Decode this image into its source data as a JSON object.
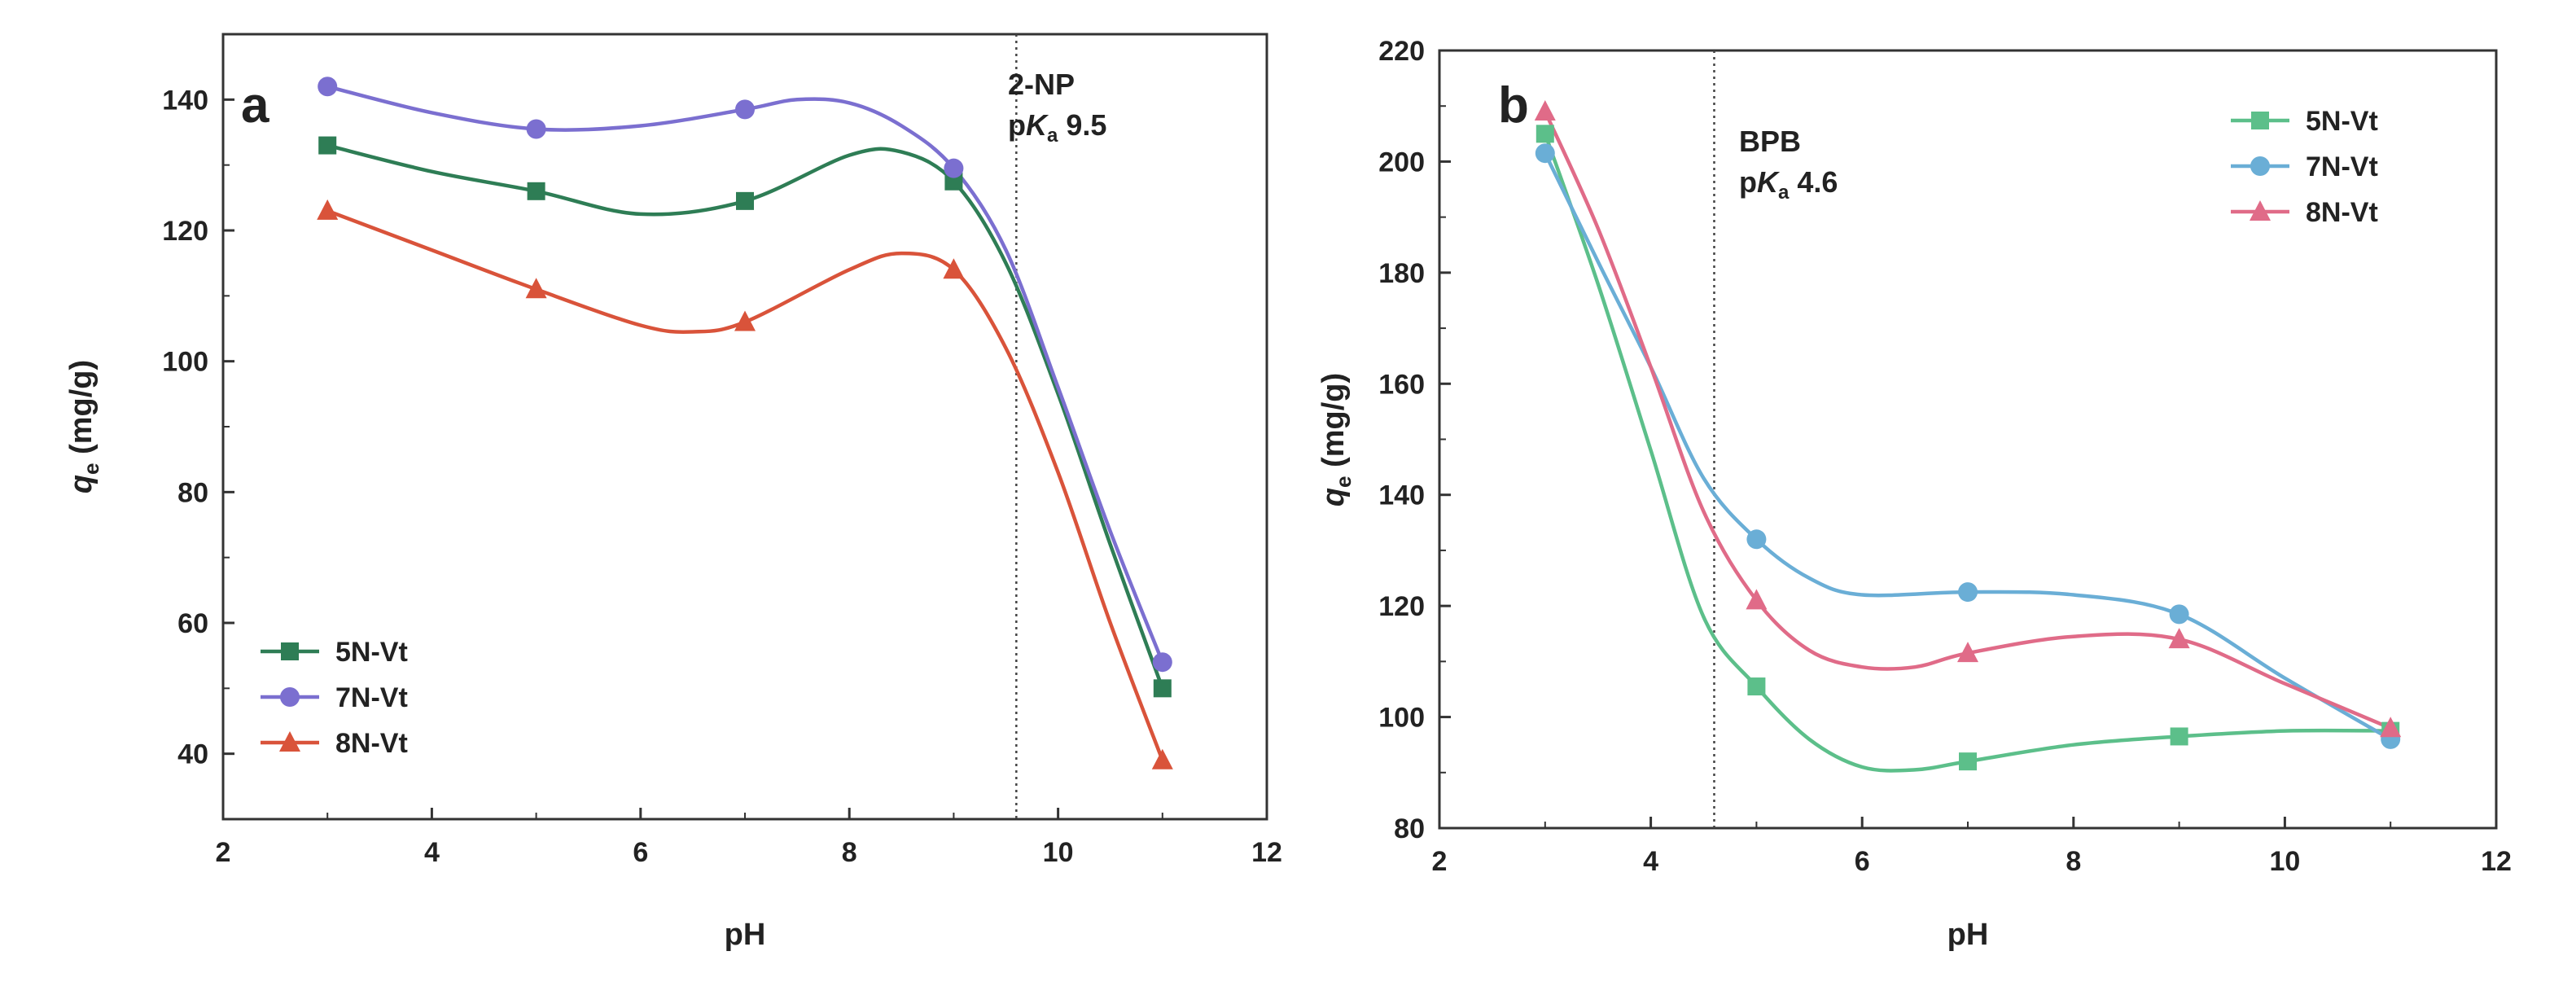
{
  "chart_data": [
    {
      "type": "line",
      "panel_label": "a",
      "xlabel": "pH",
      "ylabel_main": "q",
      "ylabel_sub": "e",
      "ylabel_unit": " (mg/g)",
      "xlim": [
        2,
        12
      ],
      "ylim": [
        30,
        150
      ],
      "xticks": [
        2,
        4,
        6,
        8,
        10,
        12
      ],
      "yticks": [
        40,
        60,
        80,
        100,
        120,
        140
      ],
      "legend_position": "bottom-left",
      "annotation": {
        "line1": "2-NP",
        "pka_prefix": "p",
        "pka_k": "K",
        "pka_sub": "a",
        "pka_value": " 9.5",
        "x": 9.6
      },
      "series": [
        {
          "name": "5N-Vt",
          "color": "#2e7d55",
          "marker": "square",
          "x": [
            3,
            5,
            7,
            9,
            11
          ],
          "y": [
            133,
            126,
            124.5,
            127.5,
            50
          ],
          "curve": [
            [
              3,
              133
            ],
            [
              4,
              129
            ],
            [
              5,
              126
            ],
            [
              6,
              122.5
            ],
            [
              7,
              124.5
            ],
            [
              8,
              131.5
            ],
            [
              8.5,
              132
            ],
            [
              9,
              127.5
            ],
            [
              9.5,
              115
            ],
            [
              10,
              95
            ],
            [
              10.5,
              72
            ],
            [
              11,
              50
            ]
          ]
        },
        {
          "name": "7N-Vt",
          "color": "#7b6fd0",
          "marker": "circle",
          "x": [
            3,
            5,
            7,
            9,
            11
          ],
          "y": [
            142,
            135.5,
            138.5,
            129.5,
            54
          ],
          "curve": [
            [
              3,
              142
            ],
            [
              4,
              138
            ],
            [
              5,
              135.5
            ],
            [
              6,
              136
            ],
            [
              7,
              138.5
            ],
            [
              7.5,
              140
            ],
            [
              8,
              139.5
            ],
            [
              8.5,
              136
            ],
            [
              9,
              129.5
            ],
            [
              9.5,
              117
            ],
            [
              10,
              96
            ],
            [
              10.5,
              74
            ],
            [
              11,
              54
            ]
          ]
        },
        {
          "name": "8N-Vt",
          "color": "#d9533a",
          "marker": "triangle",
          "x": [
            3,
            5,
            7,
            9,
            11
          ],
          "y": [
            123,
            111,
            106,
            114,
            39
          ],
          "curve": [
            [
              3,
              123
            ],
            [
              4,
              117
            ],
            [
              5,
              111
            ],
            [
              6,
              105.5
            ],
            [
              6.5,
              104.5
            ],
            [
              7,
              106
            ],
            [
              8,
              114
            ],
            [
              8.5,
              116.5
            ],
            [
              9,
              114
            ],
            [
              9.5,
              102
            ],
            [
              10,
              83
            ],
            [
              10.5,
              60
            ],
            [
              11,
              39
            ]
          ]
        }
      ]
    },
    {
      "type": "line",
      "panel_label": "b",
      "xlabel": "pH",
      "ylabel_main": "q",
      "ylabel_sub": "e",
      "ylabel_unit": " (mg/g)",
      "xlim": [
        2,
        12
      ],
      "ylim": [
        80,
        220
      ],
      "xticks": [
        2,
        4,
        6,
        8,
        10,
        12
      ],
      "yticks": [
        80,
        100,
        120,
        140,
        160,
        180,
        200,
        220
      ],
      "legend_position": "top-right",
      "annotation": {
        "line1": "BPB",
        "pka_prefix": "p",
        "pka_k": "K",
        "pka_sub": "a",
        "pka_value": " 4.6",
        "x": 4.6
      },
      "series": [
        {
          "name": "5N-Vt",
          "color": "#5cbf8a",
          "marker": "square",
          "x": [
            3,
            5,
            7,
            9,
            11
          ],
          "y": [
            205,
            105.5,
            92,
            96.5,
            97.5
          ],
          "curve": [
            [
              3,
              205
            ],
            [
              3.5,
              178
            ],
            [
              4,
              148
            ],
            [
              4.5,
              118
            ],
            [
              5,
              105.5
            ],
            [
              5.5,
              96
            ],
            [
              6,
              91
            ],
            [
              6.5,
              90.5
            ],
            [
              7,
              92
            ],
            [
              8,
              95
            ],
            [
              9,
              96.5
            ],
            [
              10,
              97.5
            ],
            [
              11,
              97.5
            ]
          ]
        },
        {
          "name": "7N-Vt",
          "color": "#6aaed6",
          "marker": "circle",
          "x": [
            3,
            5,
            7,
            9,
            11
          ],
          "y": [
            201.5,
            132,
            122.5,
            118.5,
            96
          ],
          "curve": [
            [
              3,
              201.5
            ],
            [
              3.5,
              182
            ],
            [
              4,
              163
            ],
            [
              4.5,
              143
            ],
            [
              5,
              132
            ],
            [
              5.5,
              125
            ],
            [
              6,
              122
            ],
            [
              7,
              122.5
            ],
            [
              8,
              122
            ],
            [
              9,
              118.5
            ],
            [
              10,
              107
            ],
            [
              11,
              96
            ]
          ]
        },
        {
          "name": "8N-Vt",
          "color": "#e06b88",
          "marker": "triangle",
          "x": [
            3,
            5,
            7,
            9,
            11
          ],
          "y": [
            209,
            121,
            111.5,
            114,
            98
          ],
          "curve": [
            [
              3,
              209
            ],
            [
              3.5,
              188
            ],
            [
              4,
              163
            ],
            [
              4.5,
              137
            ],
            [
              5,
              121
            ],
            [
              5.5,
              112
            ],
            [
              6,
              109
            ],
            [
              6.5,
              109
            ],
            [
              7,
              111.5
            ],
            [
              8,
              114.5
            ],
            [
              9,
              114
            ],
            [
              10,
              106
            ],
            [
              11,
              98
            ]
          ]
        }
      ]
    }
  ]
}
